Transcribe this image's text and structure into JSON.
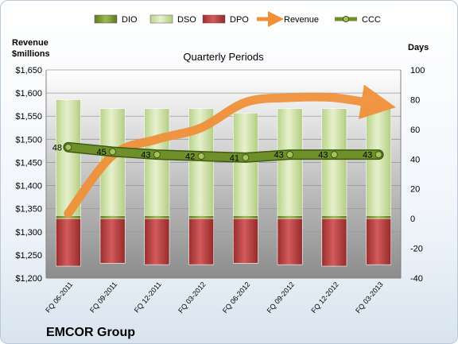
{
  "chart_data": {
    "type": "bar",
    "title": "Quarterly Periods",
    "company": "EMCOR Group",
    "y_left_label_line1": "Revenue",
    "y_left_label_line2": "$millions",
    "y_right_label": "Days",
    "categories": [
      "FQ 06-2011",
      "FQ 09-2011",
      "FQ 12-2011",
      "FQ 03-2012",
      "FQ 06-2012",
      "FQ 09-2012",
      "FQ 12-2012",
      "FQ 03-2013"
    ],
    "y_left_range": [
      1200,
      1650
    ],
    "y_left_ticks": [
      "$1,200",
      "$1,250",
      "$1,300",
      "$1,350",
      "$1,400",
      "$1,450",
      "$1,500",
      "$1,550",
      "$1,600",
      "$1,650"
    ],
    "y_right_range": [
      -40,
      100
    ],
    "y_right_ticks": [
      "-40",
      "-20",
      "0",
      "20",
      "40",
      "60",
      "80",
      "100"
    ],
    "legend_position": "top",
    "series": [
      {
        "name": "DIO",
        "axis": "days",
        "color": "#6f8f2a",
        "values": [
          2,
          2,
          2,
          2,
          2,
          2,
          2,
          2
        ]
      },
      {
        "name": "DSO",
        "axis": "days",
        "color": "#c8dfa0",
        "values": [
          78,
          72,
          72,
          72,
          69,
          72,
          72,
          72
        ]
      },
      {
        "name": "DPO",
        "axis": "days",
        "color": "#b33a3a",
        "values": [
          -32,
          -30,
          -31,
          -31,
          -30,
          -31,
          -32,
          -31
        ]
      },
      {
        "name": "Revenue",
        "axis": "revenue",
        "color": "#f0913a",
        "values": [
          1340,
          1465,
          1500,
          1525,
          1580,
          1590,
          1590,
          1575
        ]
      },
      {
        "name": "CCC",
        "axis": "days",
        "color": "#6f8f2a",
        "values": [
          48,
          45,
          43,
          42,
          41,
          43,
          43,
          43
        ]
      }
    ],
    "ccc_labels": [
      "48",
      "45",
      "43",
      "42",
      "41",
      "43",
      "43",
      "43"
    ],
    "grid": true
  }
}
